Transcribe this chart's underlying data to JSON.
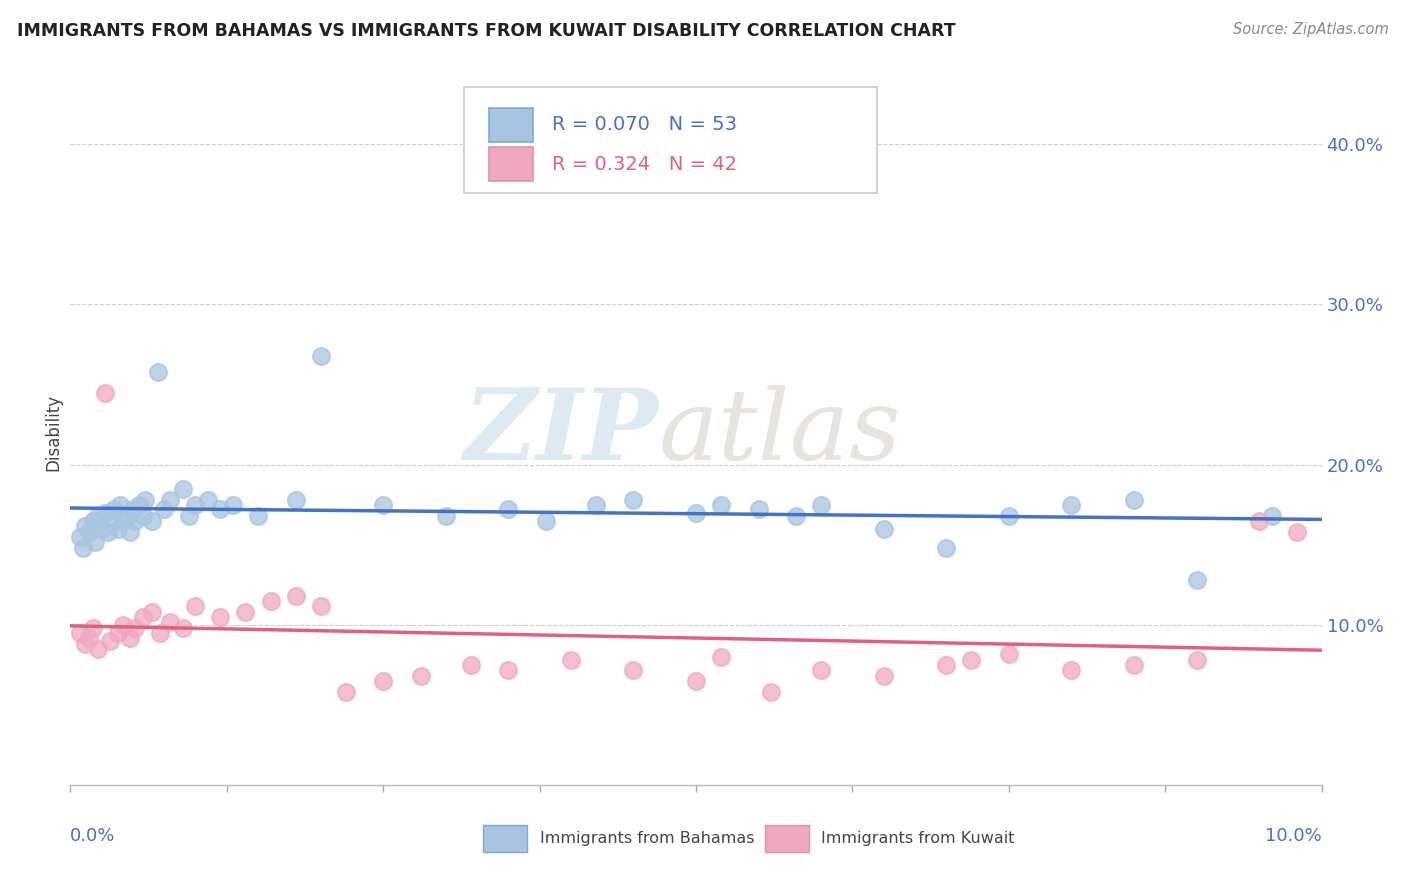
{
  "title": "IMMIGRANTS FROM BAHAMAS VS IMMIGRANTS FROM KUWAIT DISABILITY CORRELATION CHART",
  "source": "Source: ZipAtlas.com",
  "ylabel": "Disability",
  "r_bahamas": 0.07,
  "n_bahamas": 53,
  "r_kuwait": 0.324,
  "n_kuwait": 42,
  "color_bahamas": "#a8c4e0",
  "color_kuwait": "#f0a8c0",
  "line_color_bahamas": "#4472c4",
  "line_color_kuwait": "#e06080",
  "watermark_zip": "ZIP",
  "watermark_atlas": "atlas",
  "background_color": "#ffffff",
  "xlim": [
    0.0,
    0.1
  ],
  "ylim": [
    0.0,
    0.44
  ],
  "yticks": [
    0.1,
    0.2,
    0.3,
    0.4
  ],
  "ytick_labels": [
    "10.0%",
    "20.0%",
    "30.0%",
    "40.0%"
  ],
  "bahamas_x": [
    0.0008,
    0.001,
    0.0012,
    0.0015,
    0.0018,
    0.002,
    0.0022,
    0.0025,
    0.0028,
    0.003,
    0.0032,
    0.0035,
    0.0038,
    0.004,
    0.0042,
    0.0045,
    0.0048,
    0.005,
    0.0052,
    0.0055,
    0.0058,
    0.006,
    0.0065,
    0.007,
    0.0075,
    0.008,
    0.009,
    0.0095,
    0.01,
    0.011,
    0.012,
    0.013,
    0.015,
    0.018,
    0.02,
    0.025,
    0.03,
    0.035,
    0.038,
    0.042,
    0.045,
    0.05,
    0.052,
    0.055,
    0.058,
    0.06,
    0.065,
    0.07,
    0.075,
    0.08,
    0.085,
    0.09,
    0.096
  ],
  "bahamas_y": [
    0.155,
    0.148,
    0.162,
    0.158,
    0.165,
    0.152,
    0.168,
    0.16,
    0.17,
    0.158,
    0.165,
    0.172,
    0.16,
    0.175,
    0.165,
    0.168,
    0.158,
    0.172,
    0.165,
    0.175,
    0.168,
    0.178,
    0.165,
    0.258,
    0.172,
    0.178,
    0.185,
    0.168,
    0.175,
    0.178,
    0.172,
    0.175,
    0.168,
    0.178,
    0.268,
    0.175,
    0.168,
    0.172,
    0.165,
    0.175,
    0.178,
    0.17,
    0.175,
    0.172,
    0.168,
    0.175,
    0.16,
    0.148,
    0.168,
    0.175,
    0.178,
    0.128,
    0.168
  ],
  "kuwait_x": [
    0.0008,
    0.0012,
    0.0015,
    0.0018,
    0.0022,
    0.0028,
    0.0032,
    0.0038,
    0.0042,
    0.0048,
    0.0052,
    0.0058,
    0.0065,
    0.0072,
    0.008,
    0.009,
    0.01,
    0.012,
    0.014,
    0.016,
    0.018,
    0.02,
    0.022,
    0.025,
    0.028,
    0.032,
    0.035,
    0.04,
    0.045,
    0.05,
    0.052,
    0.056,
    0.06,
    0.065,
    0.07,
    0.072,
    0.075,
    0.08,
    0.085,
    0.09,
    0.095,
    0.098
  ],
  "kuwait_y": [
    0.095,
    0.088,
    0.092,
    0.098,
    0.085,
    0.245,
    0.09,
    0.095,
    0.1,
    0.092,
    0.098,
    0.105,
    0.108,
    0.095,
    0.102,
    0.098,
    0.112,
    0.105,
    0.108,
    0.115,
    0.118,
    0.112,
    0.058,
    0.065,
    0.068,
    0.075,
    0.072,
    0.078,
    0.072,
    0.065,
    0.08,
    0.058,
    0.072,
    0.068,
    0.075,
    0.078,
    0.082,
    0.072,
    0.075,
    0.078,
    0.165,
    0.158
  ]
}
